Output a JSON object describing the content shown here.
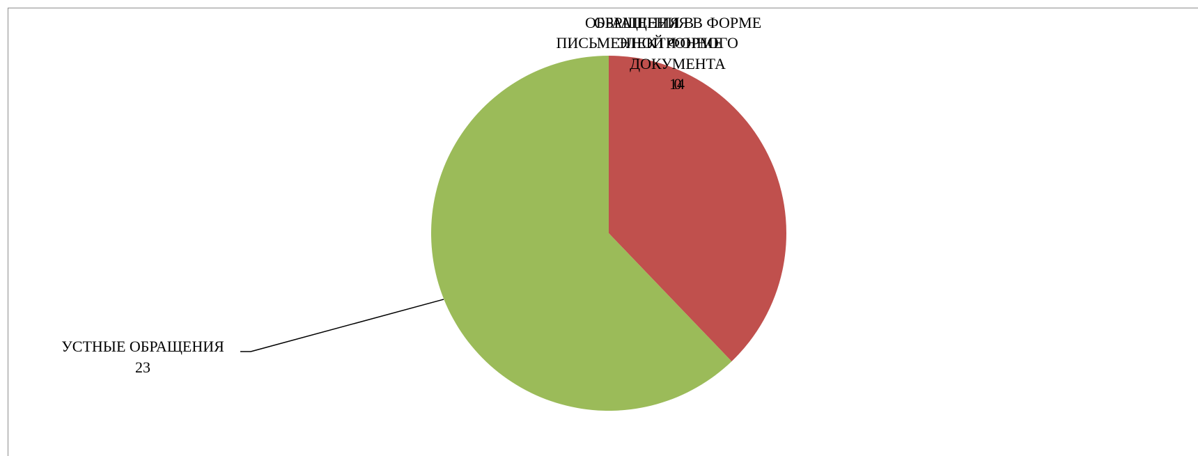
{
  "chart_data": {
    "type": "pie",
    "title": "",
    "slices": [
      {
        "name": "ОБРАЩЕНИЯ В ФОРМЕ ЭЛЕКТРОННОГО ДОКУМЕНТА",
        "label_lines": [
          "ОБРАЩЕНИЯ В ФОРМЕ",
          "ЭЛЕКТРОННОГО",
          "ДОКУМЕНТА"
        ],
        "value": 0,
        "color": "#4f81bd"
      },
      {
        "name": "ОБРАЩЕНИЯ В ПИСЬМЕННОЙ ФОРМЕ",
        "label_lines": [
          "ОБРАЩЕНИЯ В",
          "ПИСЬМЕННОЙ ФОРМЕ"
        ],
        "value": 14,
        "color": "#c0504d"
      },
      {
        "name": "УСТНЫЕ ОБРАЩЕНИЯ",
        "label_lines": [
          "УСТНЫЕ ОБРАЩЕНИЯ"
        ],
        "value": 23,
        "color": "#9bbb59"
      }
    ],
    "start_angle": "12 o'clock",
    "direction": "clockwise",
    "legend": "none",
    "data_labels": "category name and value"
  }
}
